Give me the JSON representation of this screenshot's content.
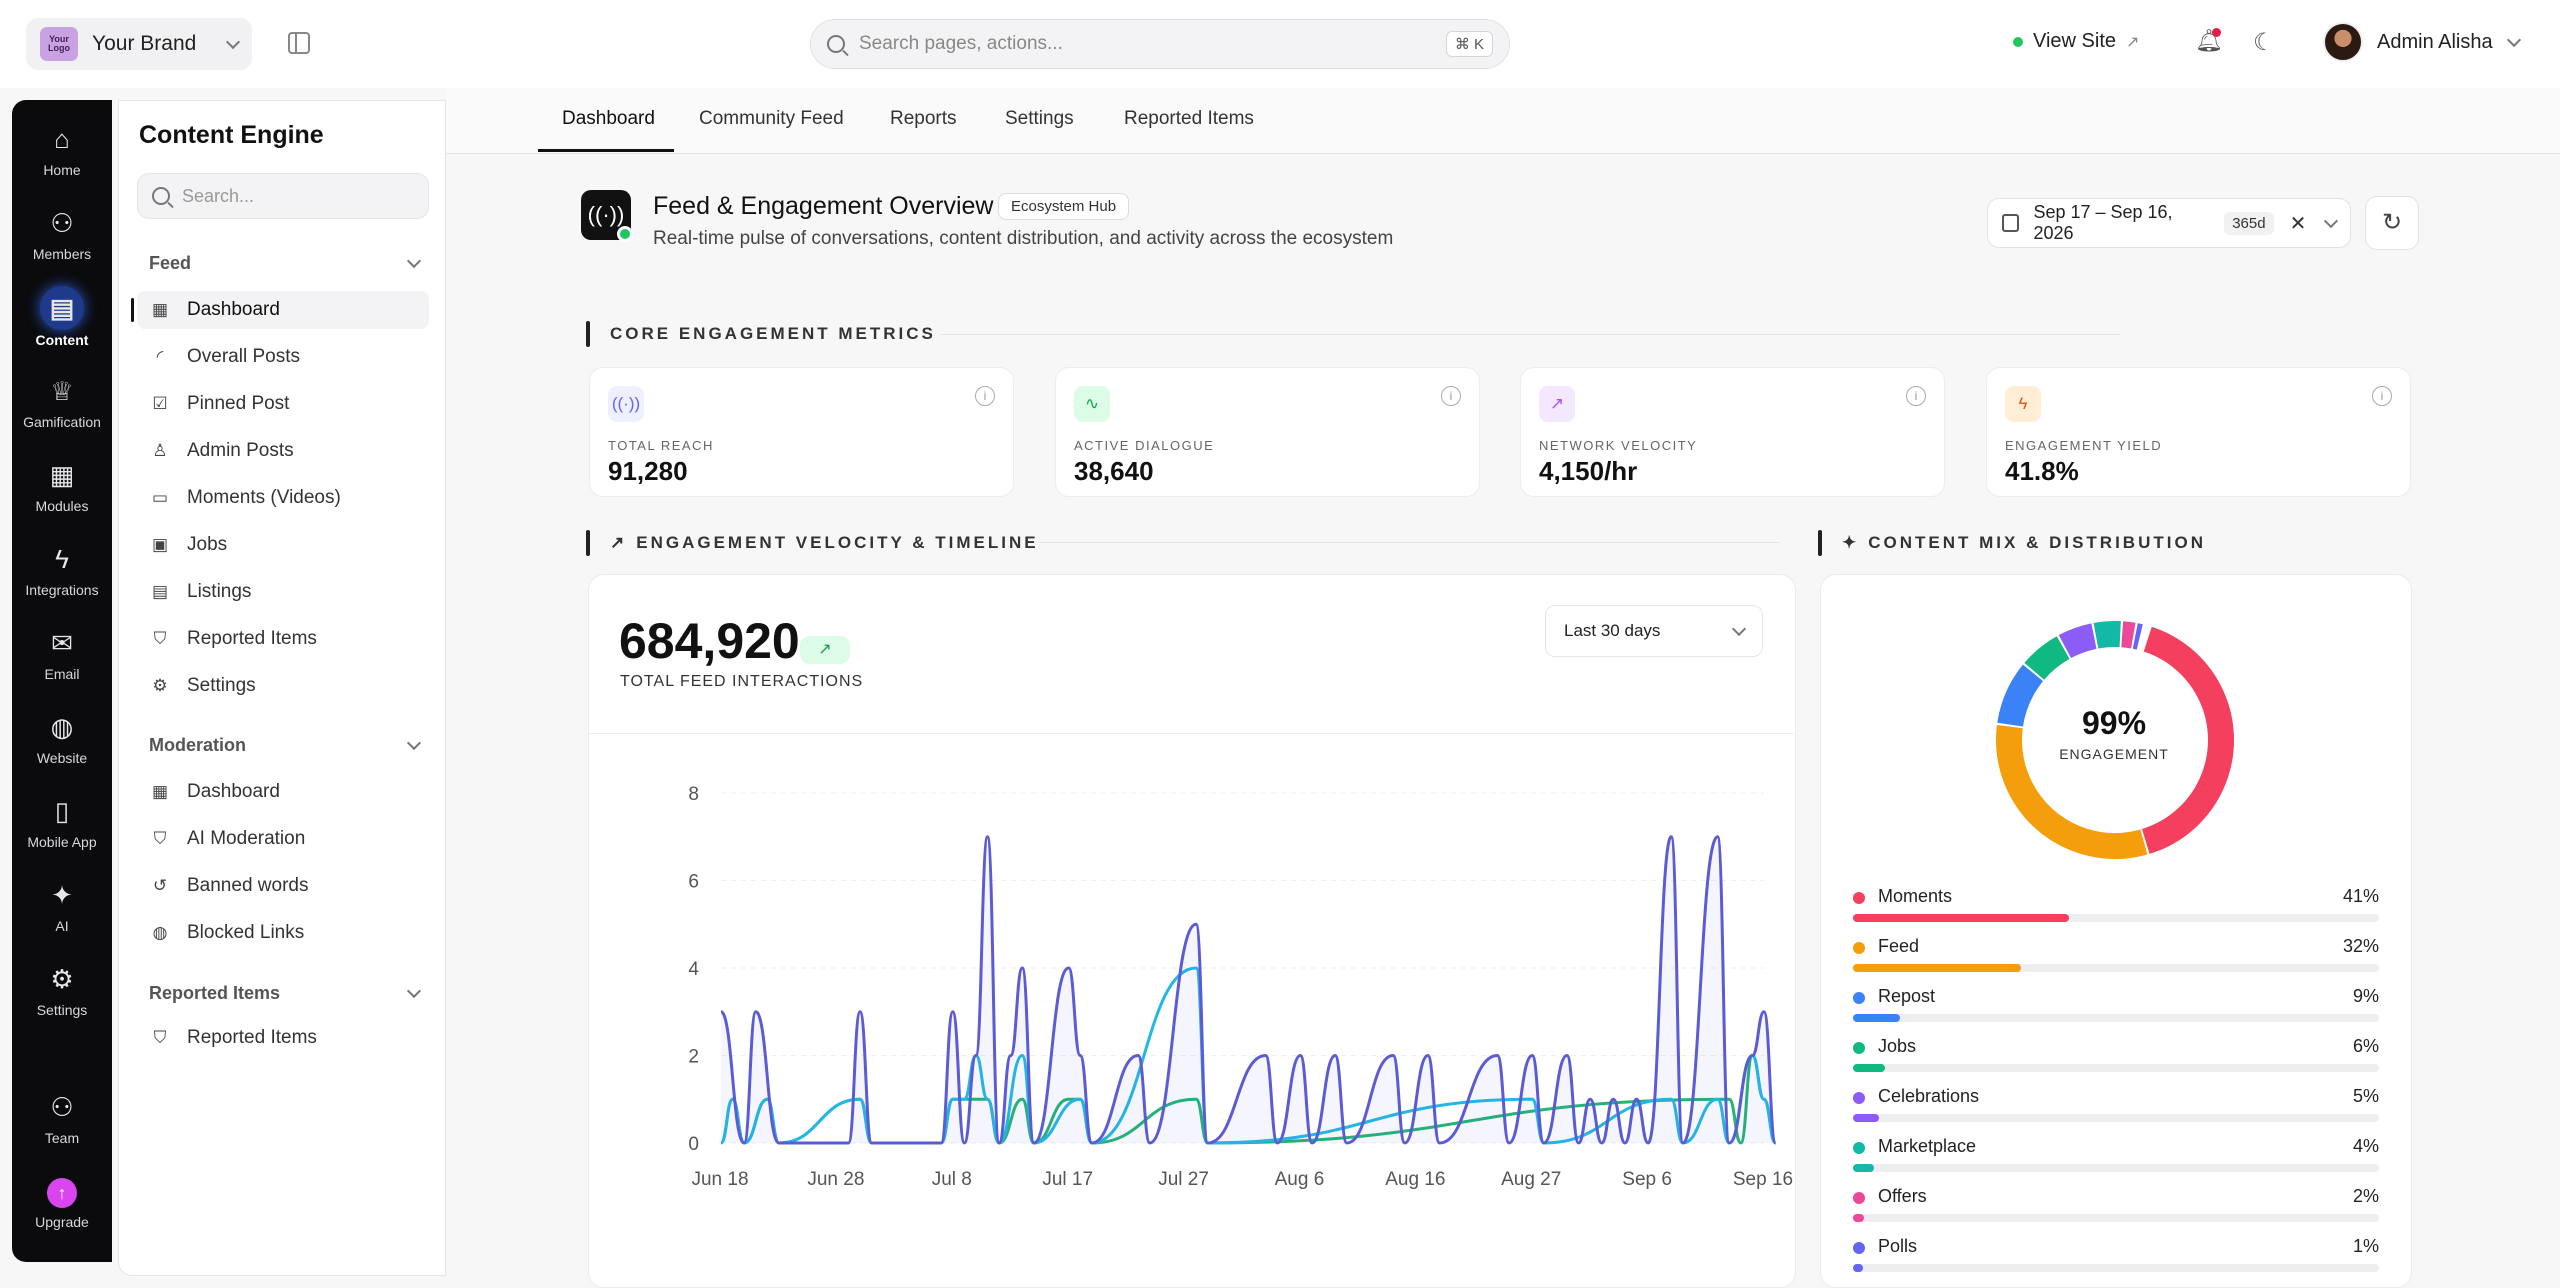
{
  "topbar": {
    "brand_logo_text": "Your Logo",
    "brand_name": "Your Brand",
    "search_placeholder": "Search pages, actions...",
    "search_shortcut": "⌘ K",
    "view_site": "View Site",
    "user_name": "Admin Alisha"
  },
  "rail": {
    "items": [
      {
        "label": "Home",
        "icon": "home-icon"
      },
      {
        "label": "Members",
        "icon": "users-icon"
      },
      {
        "label": "Content",
        "icon": "document-icon"
      },
      {
        "label": "Gamification",
        "icon": "trophy-icon"
      },
      {
        "label": "Modules",
        "icon": "grid-icon"
      },
      {
        "label": "Integrations",
        "icon": "bolt-icon"
      },
      {
        "label": "Email",
        "icon": "mail-icon"
      },
      {
        "label": "Website",
        "icon": "globe-icon"
      },
      {
        "label": "Mobile App",
        "icon": "phone-icon"
      },
      {
        "label": "AI",
        "icon": "sparkles-icon"
      },
      {
        "label": "Settings",
        "icon": "gear-icon"
      },
      {
        "label": "Team",
        "icon": "team-icon"
      },
      {
        "label": "Upgrade",
        "icon": "arrow-up-icon"
      }
    ],
    "active": "Content"
  },
  "sidebar": {
    "title": "Content Engine",
    "search_placeholder": "Search...",
    "sections": [
      {
        "title": "Feed",
        "items": [
          "Dashboard",
          "Overall Posts",
          "Pinned Post",
          "Admin Posts",
          "Moments (Videos)",
          "Jobs",
          "Listings",
          "Reported Items",
          "Settings"
        ]
      },
      {
        "title": "Moderation",
        "items": [
          "Dashboard",
          "AI Moderation",
          "Banned words",
          "Blocked Links"
        ]
      },
      {
        "title": "Reported Items",
        "items": [
          "Reported Items"
        ]
      }
    ]
  },
  "tabs": [
    "Dashboard",
    "Community Feed",
    "Reports",
    "Settings",
    "Reported Items"
  ],
  "header": {
    "title": "Feed & Engagement Overview",
    "badge": "Ecosystem Hub",
    "subtitle": "Real-time pulse of conversations, content distribution, and activity across the ecosystem",
    "date_range": "Sep 17 – Sep 16, 2026",
    "days": "365d"
  },
  "sections": {
    "core": "CORE ENGAGEMENT METRICS",
    "velocity": "ENGAGEMENT VELOCITY & TIMELINE",
    "mix": "CONTENT MIX & DISTRIBUTION"
  },
  "metrics": [
    {
      "label": "TOTAL REACH",
      "value": "91,280",
      "icon": "broadcast-icon",
      "color": "#6366f1",
      "bg": "#eef0ff"
    },
    {
      "label": "ACTIVE DIALOGUE",
      "value": "38,640",
      "icon": "activity-icon",
      "color": "#16a34a",
      "bg": "#dcfce7"
    },
    {
      "label": "NETWORK VELOCITY",
      "value": "4,150/hr",
      "icon": "trend-up-icon",
      "color": "#a855f7",
      "bg": "#f3e8ff"
    },
    {
      "label": "ENGAGEMENT YIELD",
      "value": "41.8%",
      "icon": "bolt-icon",
      "color": "#ea580c",
      "bg": "#ffedd5"
    }
  ],
  "timeline": {
    "total": "684,920",
    "total_label": "TOTAL FEED INTERACTIONS",
    "range": "Last 30 days"
  },
  "chart_data": {
    "type": "line",
    "x_ticks": [
      "Jun 18",
      "Jun 28",
      "Jul 8",
      "Jul 17",
      "Jul 27",
      "Aug 6",
      "Aug 16",
      "Aug 27",
      "Sep 6",
      "Sep 16"
    ],
    "y_ticks": [
      0,
      2,
      4,
      6,
      8
    ],
    "ylim": [
      0,
      8
    ],
    "n_points": 91,
    "series": [
      {
        "color": "#5b5bd6",
        "points": [
          [
            0,
            3
          ],
          [
            2,
            0
          ],
          [
            3,
            3
          ],
          [
            5,
            0
          ],
          [
            11,
            0
          ],
          [
            12,
            3
          ],
          [
            13,
            0
          ],
          [
            19,
            0
          ],
          [
            20,
            3
          ],
          [
            21,
            0
          ],
          [
            22,
            2
          ],
          [
            23,
            7
          ],
          [
            24,
            0
          ],
          [
            25,
            2
          ],
          [
            26,
            4
          ],
          [
            27,
            0
          ],
          [
            30,
            4
          ],
          [
            31,
            2
          ],
          [
            32,
            0
          ],
          [
            36,
            2
          ],
          [
            37,
            0
          ],
          [
            41,
            5
          ],
          [
            42,
            0
          ],
          [
            47,
            2
          ],
          [
            48,
            0
          ],
          [
            50,
            2
          ],
          [
            51,
            0
          ],
          [
            53,
            2
          ],
          [
            54,
            0
          ],
          [
            58,
            2
          ],
          [
            59,
            0
          ],
          [
            61,
            2
          ],
          [
            62,
            0
          ],
          [
            67,
            2
          ],
          [
            68,
            0
          ],
          [
            70,
            2
          ],
          [
            71,
            0
          ],
          [
            73,
            2
          ],
          [
            74,
            0
          ],
          [
            75,
            1
          ],
          [
            76,
            0
          ],
          [
            77,
            1
          ],
          [
            78,
            0
          ],
          [
            79,
            1
          ],
          [
            80,
            0
          ],
          [
            82,
            7
          ],
          [
            83,
            0
          ],
          [
            86,
            7
          ],
          [
            87,
            0
          ],
          [
            89,
            2
          ],
          [
            90,
            3
          ],
          [
            91,
            0
          ]
        ]
      },
      {
        "color": "#22b8e6",
        "points": [
          [
            0,
            0
          ],
          [
            1,
            1
          ],
          [
            2,
            0
          ],
          [
            4,
            1
          ],
          [
            5,
            0
          ],
          [
            12,
            1
          ],
          [
            13,
            0
          ],
          [
            19,
            0
          ],
          [
            20,
            1
          ],
          [
            21,
            1
          ],
          [
            22,
            2
          ],
          [
            23,
            1
          ],
          [
            24,
            0
          ],
          [
            26,
            2
          ],
          [
            27,
            0
          ],
          [
            31,
            1
          ],
          [
            32,
            0
          ],
          [
            41,
            4
          ],
          [
            42,
            0
          ],
          [
            70,
            1
          ],
          [
            71,
            0
          ],
          [
            82,
            1
          ],
          [
            83,
            0
          ],
          [
            86,
            1
          ],
          [
            87,
            0
          ],
          [
            89,
            2
          ],
          [
            90,
            1
          ],
          [
            91,
            0
          ]
        ]
      },
      {
        "color": "#22b573",
        "points": [
          [
            0,
            0
          ],
          [
            1,
            1
          ],
          [
            2,
            0
          ],
          [
            4,
            1
          ],
          [
            5,
            0
          ],
          [
            12,
            1
          ],
          [
            13,
            0
          ],
          [
            19,
            0
          ],
          [
            20,
            1
          ],
          [
            21,
            1
          ],
          [
            22,
            1
          ],
          [
            23,
            1
          ],
          [
            24,
            0
          ],
          [
            26,
            1
          ],
          [
            27,
            0
          ],
          [
            30,
            1
          ],
          [
            31,
            1
          ],
          [
            32,
            0
          ],
          [
            41,
            1
          ],
          [
            42,
            0
          ],
          [
            87,
            1
          ],
          [
            88,
            0
          ],
          [
            89,
            2
          ],
          [
            90,
            1
          ],
          [
            91,
            0
          ]
        ]
      }
    ]
  },
  "mix": {
    "center_pct": "99%",
    "center_label": "ENGAGEMENT",
    "items": [
      {
        "name": "Moments",
        "pct": "41%",
        "value": 41,
        "color": "#f43f5e"
      },
      {
        "name": "Feed",
        "pct": "32%",
        "value": 32,
        "color": "#f59e0b"
      },
      {
        "name": "Repost",
        "pct": "9%",
        "value": 9,
        "color": "#3b82f6"
      },
      {
        "name": "Jobs",
        "pct": "6%",
        "value": 6,
        "color": "#10b981"
      },
      {
        "name": "Celebrations",
        "pct": "5%",
        "value": 5,
        "color": "#8b5cf6"
      },
      {
        "name": "Marketplace",
        "pct": "4%",
        "value": 4,
        "color": "#14b8a6"
      },
      {
        "name": "Offers",
        "pct": "2%",
        "value": 2,
        "color": "#ec4899"
      },
      {
        "name": "Polls",
        "pct": "1%",
        "value": 1,
        "color": "#6366f1"
      }
    ]
  }
}
